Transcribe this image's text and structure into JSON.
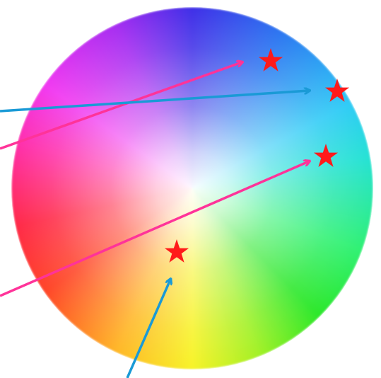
{
  "figure": {
    "type": "color-wheel-annotation",
    "wheel": {
      "description_colors": [
        "#3322e6",
        "#22c8f5",
        "#1ee61c",
        "#f7f21a",
        "#ff3a1a",
        "#f02cf0"
      ]
    },
    "stars": [
      {
        "id": "star-top",
        "color": "#ff1a1a"
      },
      {
        "id": "star-right-upper",
        "color": "#ff1a1a"
      },
      {
        "id": "star-right-middle",
        "color": "#ff1a1a"
      },
      {
        "id": "star-center",
        "color": "#ff1a1a"
      }
    ],
    "arrows": [
      {
        "id": "arrow-pink-upper",
        "color": "#ff3399",
        "target": "star-top"
      },
      {
        "id": "arrow-blue-upper",
        "color": "#1a9ad6",
        "target": "star-right-upper"
      },
      {
        "id": "arrow-pink-lower",
        "color": "#ff3399",
        "target": "star-right-middle"
      },
      {
        "id": "arrow-blue-bottom",
        "color": "#1a9ad6",
        "target": "star-center"
      }
    ]
  }
}
